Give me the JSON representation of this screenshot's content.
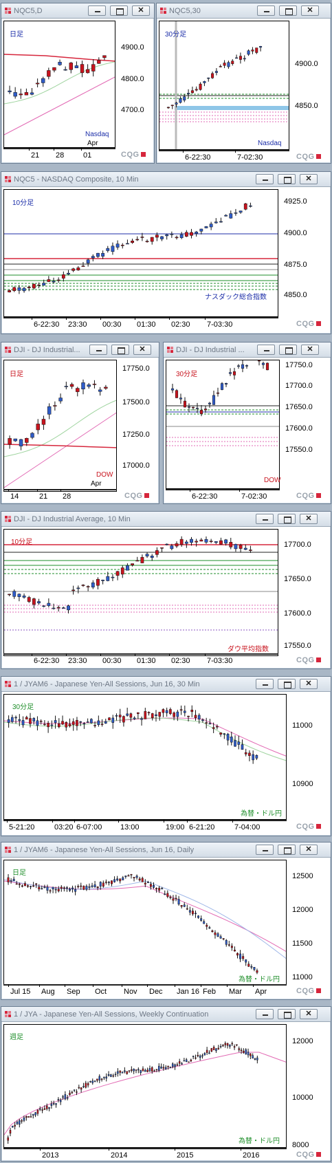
{
  "colors": {
    "bull": "#2f5cc8",
    "bear": "#c8141e",
    "blue_ma": "#1c2ea8",
    "red_line": "#d6263c",
    "green": "#1e8e2a",
    "pink": "#e26ab4",
    "purple": "#8a54c0",
    "dark": "#222222",
    "gray": "#888888"
  },
  "windows": [
    {
      "title": "NQC5,D",
      "period": "日足",
      "tag": "Nasdaq",
      "tag2": "Apr",
      "yticks": [
        "4900.0",
        "4800.0",
        "4700.0"
      ],
      "xticks": [
        "21",
        "28",
        "01"
      ]
    },
    {
      "title": "NQC5,30",
      "period": "30分足",
      "tag": "Nasdaq",
      "yticks": [
        "4900.0",
        "4850.0"
      ],
      "xticks": [
        "6-22:30",
        "7-02:30"
      ]
    },
    {
      "title": "NQC5 - NASDAQ Composite, 10 Min",
      "period": "10分足",
      "tag": "ナスダック総合指数",
      "yticks": [
        "4925.0",
        "4900.0",
        "4875.0",
        "4850.0"
      ],
      "xticks": [
        "6-22:30",
        "23:30",
        "00:30",
        "01:30",
        "02:30",
        "7-03:30"
      ]
    },
    {
      "title": "DJI - DJ Industrial...",
      "period": "日足",
      "tag": "DOW",
      "tag2": "Apr",
      "yticks": [
        "17750.0",
        "17500.0",
        "17250.0",
        "17000.0"
      ],
      "xticks": [
        "14",
        "21",
        "28"
      ]
    },
    {
      "title": "DJI - DJ Industrial ...",
      "period": "30分足",
      "tag": "DOW",
      "yticks": [
        "17750.0",
        "17700.0",
        "17650.0",
        "17600.0",
        "17550.0"
      ],
      "xticks": [
        "6-22:30",
        "7-02:30"
      ]
    },
    {
      "title": "DJI - DJ Industrial Average, 10 Min",
      "period": "10分足",
      "tag": "ダウ平均指数",
      "yticks": [
        "17700.0",
        "17650.0",
        "17600.0",
        "17550.0"
      ],
      "xticks": [
        "6-22:30",
        "23:30",
        "00:30",
        "01:30",
        "02:30",
        "7-03:30"
      ]
    },
    {
      "title": "1 / JYAM6 - Japanese Yen-All Sessions, Jun 16, 30 Min",
      "period": "30分足",
      "tag": "為替・ドル円",
      "yticks": [
        "11000",
        "10900"
      ],
      "xticks": [
        "5-21:20",
        "03:20",
        "6-07:00",
        "13:00",
        "19:00",
        "6-21:20",
        "7-04:00"
      ]
    },
    {
      "title": "1 / JYAM6 - Japanese Yen-All Sessions, Jun 16, Daily",
      "period": "日足",
      "tag": "為替・ドル円",
      "yticks": [
        "12500",
        "12000",
        "11500",
        "11000"
      ],
      "xticks": [
        "Jul 15",
        "Aug",
        "Sep",
        "Oct",
        "Nov",
        "Dec",
        "Jan 16",
        "Feb",
        "Mar",
        "Apr"
      ]
    },
    {
      "title": "1 / JYA - Japanese Yen-All Sessions, Weekly Continuation",
      "period": "週足",
      "tag": "為替・ドル円",
      "yticks": [
        "12000",
        "10000",
        "8000"
      ],
      "xticks": [
        "2013",
        "2014",
        "2015",
        "2016"
      ]
    }
  ],
  "brand": "CQG"
}
